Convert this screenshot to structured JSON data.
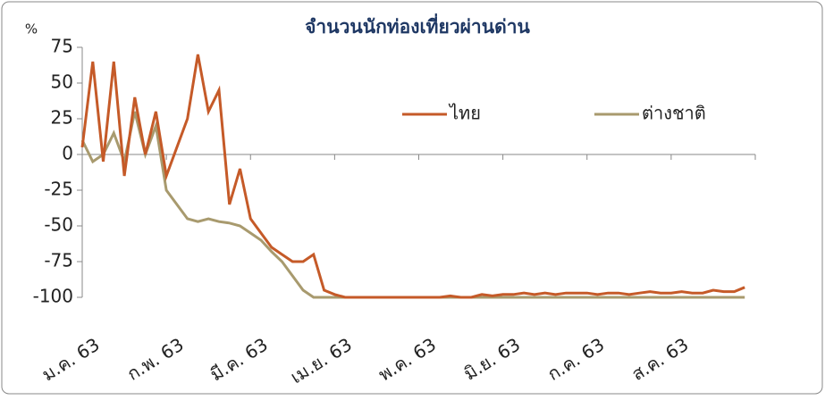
{
  "chart_data": {
    "type": "line",
    "title": "จำนวนนักท่องเที่ยวผ่านด่าน",
    "y_label": "%",
    "categories": [
      "ม.ค. 63",
      null,
      null,
      null,
      null,
      null,
      null,
      null,
      "ก.พ. 63",
      null,
      null,
      null,
      null,
      null,
      null,
      null,
      "มี.ค. 63",
      null,
      null,
      null,
      null,
      null,
      null,
      null,
      "เม.ย. 63",
      null,
      null,
      null,
      null,
      null,
      null,
      null,
      "พ.ค. 63",
      null,
      null,
      null,
      null,
      null,
      null,
      null,
      "มิ.ย. 63",
      null,
      null,
      null,
      null,
      null,
      null,
      null,
      "ก.ค. 63",
      null,
      null,
      null,
      null,
      null,
      null,
      null,
      "ส.ค. 63",
      null,
      null,
      null,
      null,
      null,
      null,
      null
    ],
    "series": [
      {
        "name": "ไทย",
        "color": "#c55a28",
        "values": [
          5,
          65,
          -5,
          65,
          -15,
          40,
          0,
          30,
          -15,
          5,
          25,
          70,
          30,
          45,
          -35,
          -10,
          -45,
          -55,
          -65,
          -70,
          -75,
          -75,
          -70,
          -95,
          -98,
          -100,
          -100,
          -100,
          -100,
          -100,
          -100,
          -100,
          -100,
          -100,
          -100,
          -99,
          -100,
          -100,
          -98,
          -99,
          -98,
          -98,
          -97,
          -98,
          -97,
          -98,
          -97,
          -97,
          -97,
          -98,
          -97,
          -97,
          -98,
          -97,
          -96,
          -97,
          -97,
          -96,
          -97,
          -97,
          -95,
          -96,
          -96,
          -93
        ]
      },
      {
        "name": "ต่างชาติ",
        "color": "#a89a6e",
        "values": [
          10,
          -5,
          0,
          15,
          -5,
          30,
          0,
          20,
          -25,
          -35,
          -45,
          -47,
          -45,
          -47,
          -48,
          -50,
          -55,
          -60,
          -68,
          -75,
          -85,
          -95,
          -100,
          -100,
          -100,
          -100,
          -100,
          -100,
          -100,
          -100,
          -100,
          -100,
          -100,
          -100,
          -100,
          -100,
          -100,
          -100,
          -100,
          -100,
          -100,
          -100,
          -100,
          -100,
          -100,
          -100,
          -100,
          -100,
          -100,
          -100,
          -100,
          -100,
          -100,
          -100,
          -100,
          -100,
          -100,
          -100,
          -100,
          -100,
          -100,
          -100,
          -100,
          -100
        ]
      }
    ],
    "ylim": [
      -100,
      75
    ],
    "yticks": [
      -100,
      -75,
      -50,
      -25,
      0,
      25,
      50,
      75
    ]
  }
}
